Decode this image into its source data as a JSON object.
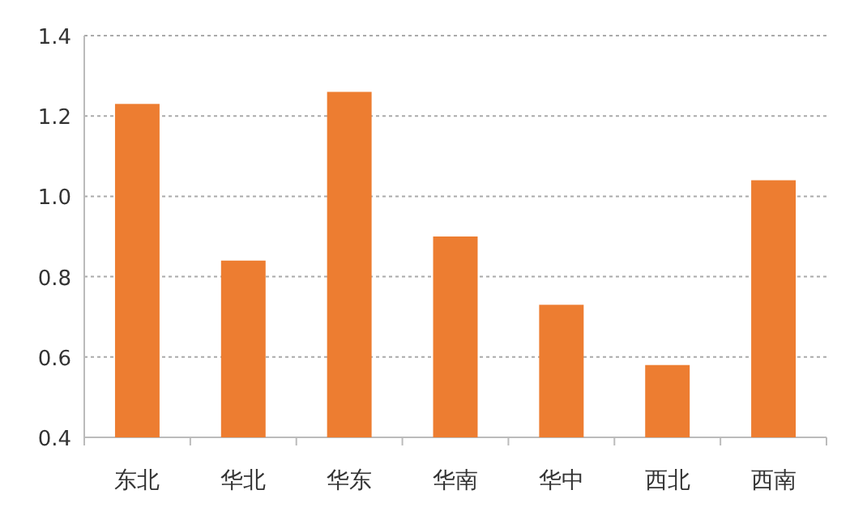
{
  "chart_data": {
    "type": "bar",
    "categories": [
      "东北",
      "华北",
      "华东",
      "华南",
      "华中",
      "西北",
      "西南"
    ],
    "values": [
      1.23,
      0.84,
      1.26,
      0.9,
      0.73,
      0.58,
      1.04
    ],
    "color": "#ed7d31",
    "ylim": [
      0.4,
      1.4
    ],
    "yticks": [
      0.4,
      0.6,
      0.8,
      {
        "value": 1,
        "label": "1.0"
      },
      1.2,
      1.4
    ],
    "grid": "y"
  }
}
